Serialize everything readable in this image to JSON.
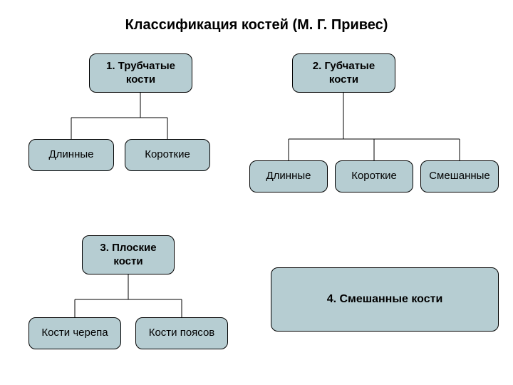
{
  "title": "Классификация костей (М. Г. Привес)",
  "colors": {
    "node_fill": "#b6cdd2",
    "background": "#ffffff",
    "border": "#000000",
    "line": "#000000"
  },
  "style": {
    "title_fontsize": 20,
    "node_fontsize": 15,
    "border_radius": 10
  },
  "tree1": {
    "root": "1. Трубчатые\nкости",
    "children": [
      "Длинные",
      "Короткие"
    ]
  },
  "tree2": {
    "root": "2. Губчатые\nкости",
    "children": [
      "Длинные",
      "Короткие",
      "Смешанные"
    ]
  },
  "tree3": {
    "root": "3. Плоские\nкости",
    "children": [
      "Кости черепа",
      "Кости поясов"
    ]
  },
  "box4": "4. Смешанные кости"
}
